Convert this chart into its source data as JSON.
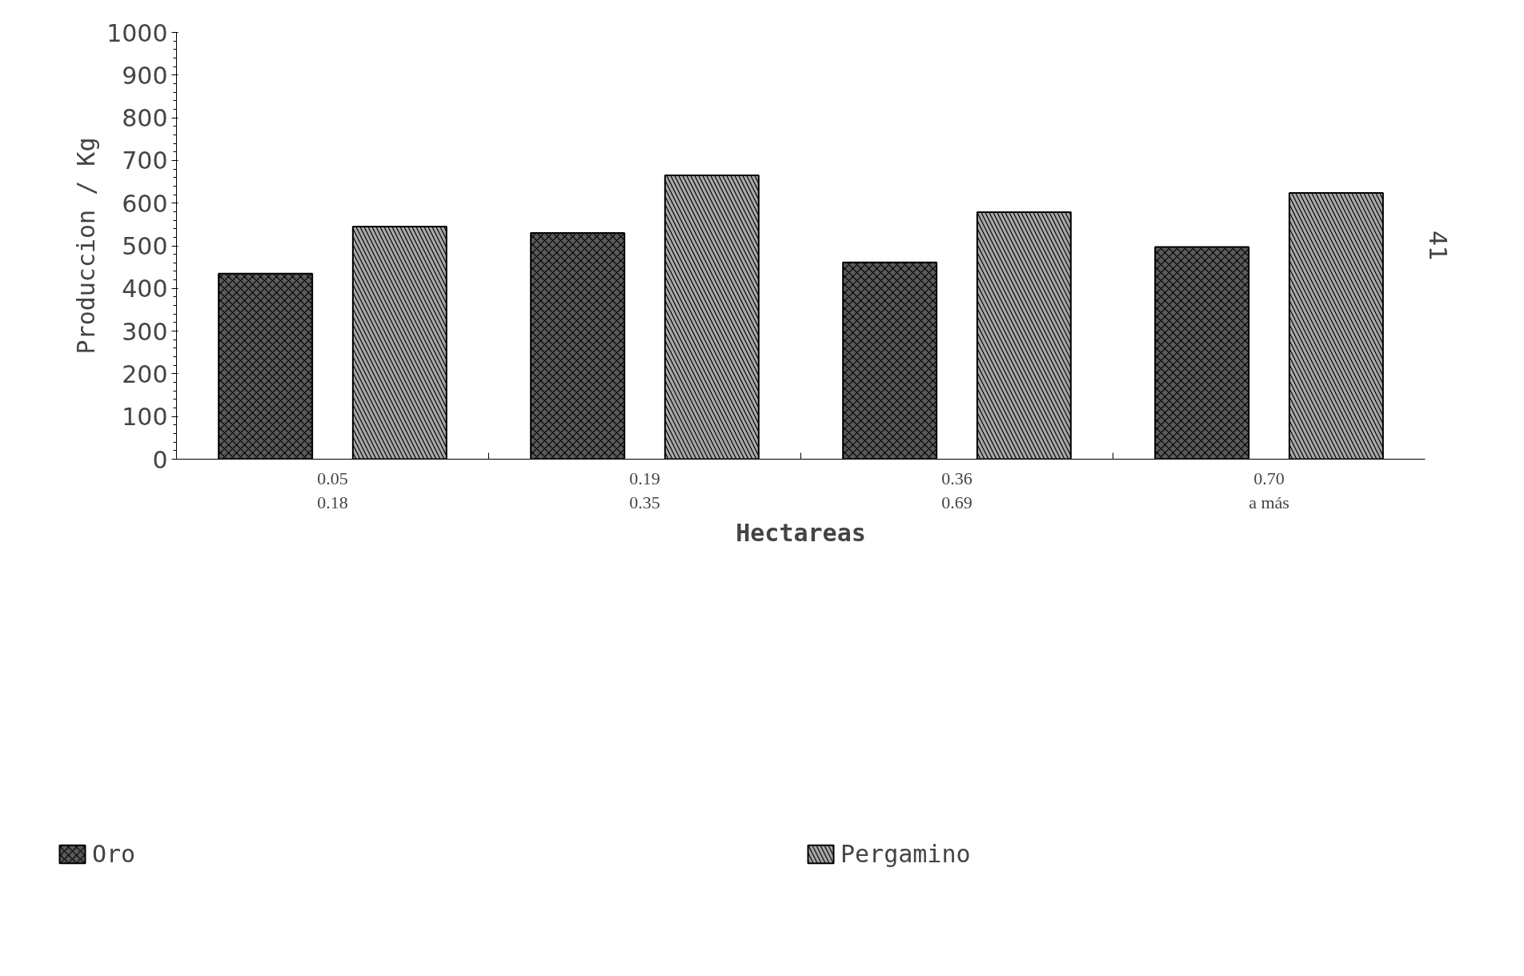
{
  "chart_data": {
    "type": "bar",
    "xlabel": "Hectareas",
    "ylabel": "Produccion / Kg",
    "categories": [
      "0.05\n0.18",
      "0.19\n0.35",
      "0.36\n0.69",
      "0.70\na más"
    ],
    "series": [
      {
        "name": "Oro",
        "color": "#5a5a5a",
        "values": [
          435,
          530,
          461,
          497
        ]
      },
      {
        "name": "Pergamino",
        "color": "#a8a8a8",
        "values": [
          545,
          665,
          579,
          624
        ]
      }
    ],
    "ylim": [
      0,
      1000
    ],
    "yticks": [
      0,
      100,
      200,
      300,
      400,
      500,
      600,
      700,
      800,
      900,
      1000
    ],
    "grid": false,
    "legend": "bottom",
    "annotations": [
      "41"
    ]
  }
}
